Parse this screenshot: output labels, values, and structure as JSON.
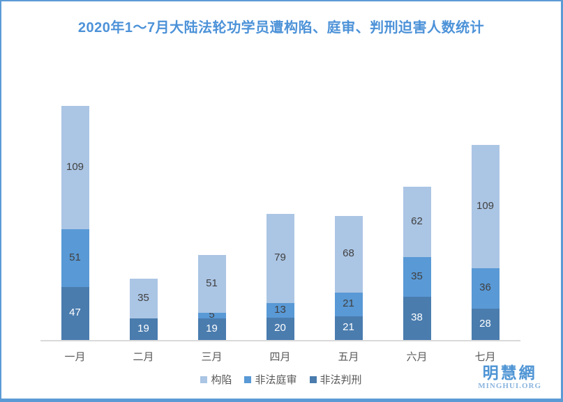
{
  "title": "2020年1～7月大陆法轮功学员遭构陷、庭审、判刑迫害人数统计",
  "chart_data": {
    "type": "bar",
    "stacked": true,
    "title": "2020年1～7月大陆法轮功学员遭构陷、庭审、判刑迫害人数统计",
    "categories": [
      "一月",
      "二月",
      "三月",
      "四月",
      "五月",
      "六月",
      "七月"
    ],
    "series": [
      {
        "name": "构陷",
        "color": "#abc5e4",
        "label_color": "#404040",
        "values": [
          109,
          35,
          51,
          79,
          68,
          62,
          109
        ]
      },
      {
        "name": "非法庭审",
        "color": "#5999d6",
        "label_color": "#404040",
        "values": [
          51,
          0,
          5,
          13,
          21,
          35,
          36
        ]
      },
      {
        "name": "非法判刑",
        "color": "#4a7cae",
        "label_color": "#ffffff",
        "values": [
          47,
          19,
          19,
          20,
          21,
          38,
          28
        ]
      }
    ],
    "stack_order_bottom_to_top": [
      "非法判刑",
      "非法庭审",
      "构陷"
    ],
    "totals_by_month": [
      207,
      54,
      75,
      112,
      110,
      135,
      173
    ],
    "xlabel": "",
    "ylabel": "",
    "y_axis": "hidden",
    "grid": false,
    "data_labels": true,
    "legend_position": "bottom"
  },
  "legend": {
    "items": [
      "构陷",
      "非法庭审",
      "非法判刑"
    ]
  },
  "logo": {
    "name": "明慧網",
    "domain": "MINGHUI.ORG"
  },
  "colors": {
    "title_text": "#4c92d8",
    "frame_border": "#5b9bd5",
    "axis_line": "#d9d9d9",
    "month_label": "#595959",
    "legend_label": "#595959",
    "logo_cn": "#4e94d4",
    "logo_en": "#8ab4de",
    "series_light": "#abc5e4",
    "series_medium": "#5999d6",
    "series_dark": "#4a7cae"
  }
}
